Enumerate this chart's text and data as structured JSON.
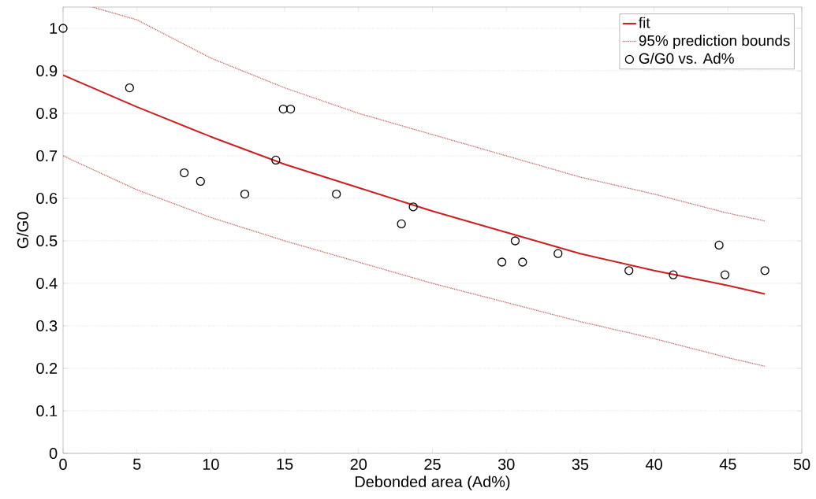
{
  "chart_data": {
    "type": "scatter",
    "xlabel": "Debonded area (Ad%)",
    "ylabel": "G/G0",
    "xlim": [
      0,
      50
    ],
    "ylim": [
      0,
      1.05
    ],
    "xticks": [
      0,
      5,
      10,
      15,
      20,
      25,
      30,
      35,
      40,
      45,
      50
    ],
    "yticks": [
      0,
      0.1,
      0.2,
      0.3,
      0.4,
      0.5,
      0.6,
      0.7,
      0.8,
      0.9,
      1
    ],
    "grid": "y",
    "legend": "top right",
    "series": [
      {
        "name": "fit",
        "type": "line",
        "color": "#cc2020",
        "line_style": "solid",
        "marker": "none",
        "x": [
          0,
          5,
          10,
          15,
          20,
          25,
          30,
          35,
          40,
          45,
          47.5
        ],
        "values": [
          0.89,
          0.815,
          0.745,
          0.68,
          0.625,
          0.57,
          0.52,
          0.47,
          0.43,
          0.395,
          0.375
        ]
      },
      {
        "name": "95% prediction bounds",
        "type": "line",
        "color": "#c06060",
        "line_style": "dotted",
        "marker": "none",
        "x": [
          2,
          5,
          10,
          15,
          20,
          25,
          30,
          35,
          40,
          45,
          47.5
        ],
        "values": [
          1.05,
          1.02,
          0.93,
          0.86,
          0.8,
          0.75,
          0.7,
          0.65,
          0.61,
          0.565,
          0.547
        ]
      },
      {
        "type": "line",
        "color": "#c06060",
        "line_style": "dotted",
        "marker": "none",
        "x": [
          0,
          5,
          10,
          15,
          20,
          25,
          30,
          35,
          40,
          45,
          47.5
        ],
        "values": [
          0.7,
          0.62,
          0.555,
          0.5,
          0.45,
          0.4,
          0.355,
          0.31,
          0.27,
          0.225,
          0.205
        ]
      },
      {
        "name": "G/G0 vs. Ad%",
        "color": "#000000",
        "marker": "circle",
        "x": [
          0,
          4.5,
          8.2,
          9.3,
          12.3,
          14.4,
          14.9,
          15.4,
          18.5,
          22.9,
          23.7,
          29.7,
          30.6,
          31.1,
          33.5,
          38.3,
          41.3,
          44.4,
          44.8,
          47.5
        ],
        "values": [
          1.0,
          0.86,
          0.66,
          0.64,
          0.61,
          0.69,
          0.81,
          0.81,
          0.61,
          0.54,
          0.58,
          0.45,
          0.5,
          0.45,
          0.47,
          0.43,
          0.42,
          0.49,
          0.42,
          0.43
        ]
      }
    ]
  }
}
